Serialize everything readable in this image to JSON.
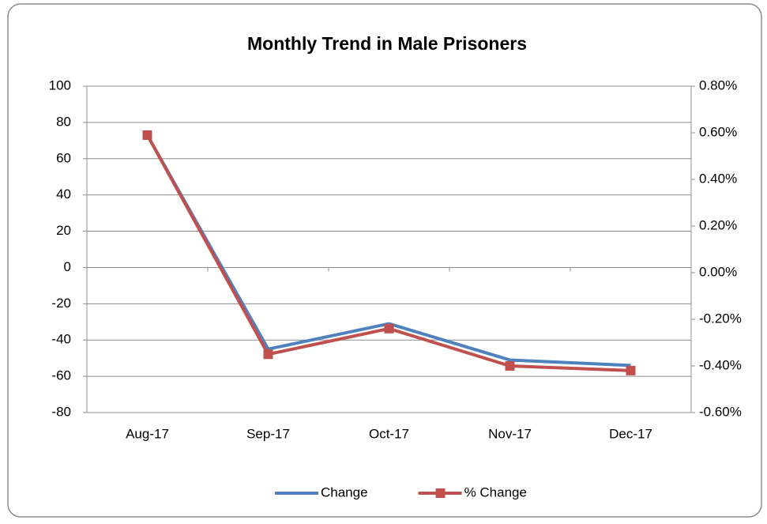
{
  "chart_data": {
    "type": "line",
    "title": "Monthly Trend in Male Prisoners",
    "categories": [
      "Aug-17",
      "Sep-17",
      "Oct-17",
      "Nov-17",
      "Dec-17"
    ],
    "series": [
      {
        "name": "Change",
        "color": "#4f81bd",
        "values": [
          73,
          -45,
          -31,
          -51,
          -54
        ]
      },
      {
        "name": "% Change",
        "color": "#c0504d",
        "axis": "y2",
        "marker": "square",
        "values": [
          0.59,
          -0.35,
          -0.24,
          -0.4,
          -0.42
        ]
      }
    ],
    "ylim": [
      -80,
      100
    ],
    "yticks": [
      -80,
      -60,
      -40,
      -20,
      0,
      20,
      40,
      60,
      80,
      100
    ],
    "y2lim": [
      -0.6,
      0.8
    ],
    "y2ticks": [
      {
        "value": -0.6,
        "label": "-0.60%"
      },
      {
        "value": -0.4,
        "label": "-0.40%"
      },
      {
        "value": -0.2,
        "label": "-0.20%"
      },
      {
        "value": 0,
        "label": "0.00%"
      },
      {
        "value": 0.2,
        "label": "0.20%"
      },
      {
        "value": 0.4,
        "label": "0.40%"
      },
      {
        "value": 0.6,
        "label": "0.60%"
      },
      {
        "value": 0.8,
        "label": "0.80%"
      }
    ],
    "grid": true,
    "legend": "bottom"
  }
}
